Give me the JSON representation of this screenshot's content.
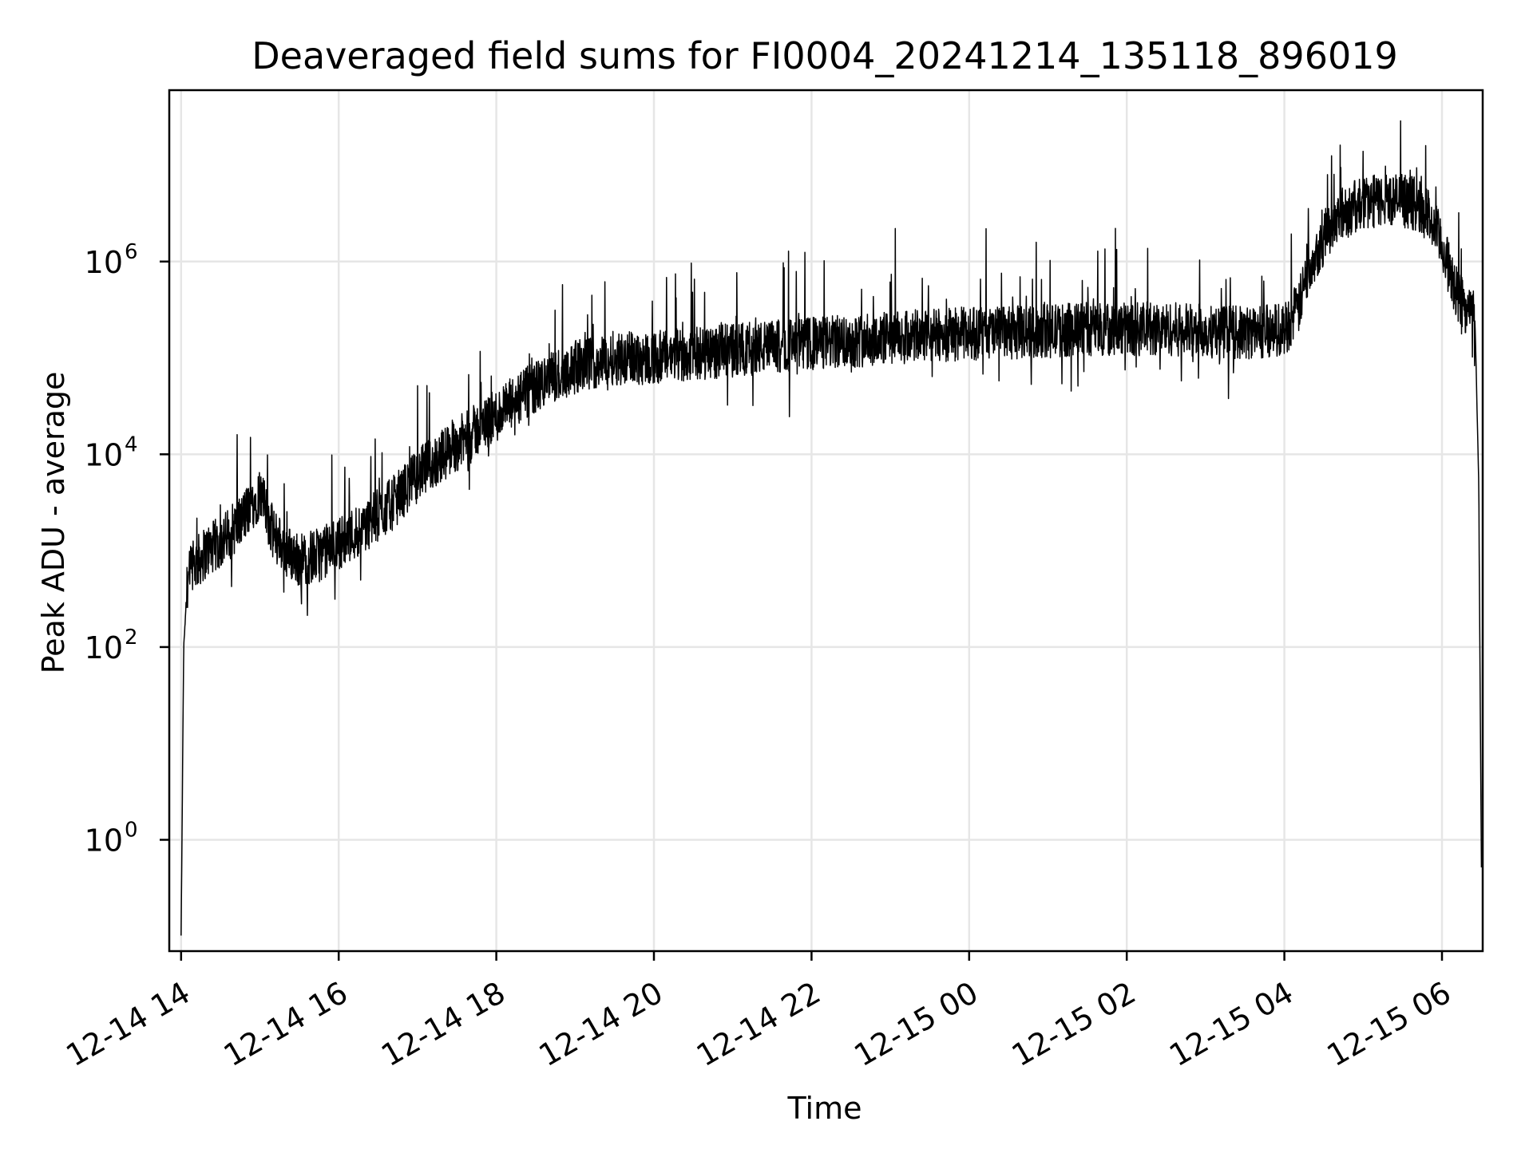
{
  "chart_data": {
    "type": "line",
    "title": "Deaveraged field sums for FI0004_20241214_135118_896019",
    "xlabel": "Time",
    "ylabel": "Peak ADU - average",
    "yscale": "log",
    "grid": true,
    "legend": "none",
    "line_color": "#000000",
    "grid_color": "#e6e6e6",
    "xlim": [
      "2024-12-14 13:51",
      "2024-12-15 06:31"
    ],
    "ylim": [
      0.07,
      60000000
    ],
    "x_ticks": [
      {
        "time": "2024-12-14 14:00",
        "label": "12-14 14"
      },
      {
        "time": "2024-12-14 16:00",
        "label": "12-14 16"
      },
      {
        "time": "2024-12-14 18:00",
        "label": "12-14 18"
      },
      {
        "time": "2024-12-14 20:00",
        "label": "12-14 20"
      },
      {
        "time": "2024-12-14 22:00",
        "label": "12-14 22"
      },
      {
        "time": "2024-12-15 00:00",
        "label": "12-15 00"
      },
      {
        "time": "2024-12-15 02:00",
        "label": "12-15 02"
      },
      {
        "time": "2024-12-15 04:00",
        "label": "12-15 04"
      },
      {
        "time": "2024-12-15 06:00",
        "label": "12-15 06"
      }
    ],
    "y_ticks": [
      {
        "value": 1,
        "base": "10",
        "exp": "0"
      },
      {
        "value": 100,
        "base": "10",
        "exp": "2"
      },
      {
        "value": 10000,
        "base": "10",
        "exp": "4"
      },
      {
        "value": 1000000,
        "base": "10",
        "exp": "6"
      }
    ],
    "series": [
      {
        "x": [
          "2024-12-14 14:00",
          "2024-12-14 14:02",
          "2024-12-14 14:05",
          "2024-12-14 14:10",
          "2024-12-14 14:20",
          "2024-12-14 14:30",
          "2024-12-14 14:45",
          "2024-12-14 15:00",
          "2024-12-14 15:10",
          "2024-12-14 15:20",
          "2024-12-14 15:30",
          "2024-12-14 15:45",
          "2024-12-14 16:00",
          "2024-12-14 16:20",
          "2024-12-14 16:40",
          "2024-12-14 17:00",
          "2024-12-14 17:20",
          "2024-12-14 17:40",
          "2024-12-14 18:00",
          "2024-12-14 18:20",
          "2024-12-14 18:40",
          "2024-12-14 19:00",
          "2024-12-14 19:30",
          "2024-12-14 20:00",
          "2024-12-14 20:30",
          "2024-12-14 21:00",
          "2024-12-14 21:30",
          "2024-12-14 22:00",
          "2024-12-14 22:30",
          "2024-12-14 23:00",
          "2024-12-14 23:30",
          "2024-12-15 00:00",
          "2024-12-15 00:30",
          "2024-12-15 01:00",
          "2024-12-15 01:30",
          "2024-12-15 02:00",
          "2024-12-15 02:30",
          "2024-12-15 03:00",
          "2024-12-15 03:30",
          "2024-12-15 04:00",
          "2024-12-15 04:10",
          "2024-12-15 04:20",
          "2024-12-15 04:40",
          "2024-12-15 05:00",
          "2024-12-15 05:20",
          "2024-12-15 05:40",
          "2024-12-15 05:50",
          "2024-12-15 06:00",
          "2024-12-15 06:10",
          "2024-12-15 06:20",
          "2024-12-15 06:25",
          "2024-12-15 06:28",
          "2024-12-15 06:30"
        ],
        "y": [
          0.1,
          100,
          500,
          700,
          1000,
          1200,
          2000,
          4000,
          1500,
          1000,
          800,
          900,
          1200,
          1800,
          3000,
          6000,
          10000,
          16000,
          25000,
          40000,
          60000,
          80000,
          100000,
          100000,
          110000,
          120000,
          130000,
          140000,
          150000,
          160000,
          170000,
          180000,
          180000,
          190000,
          200000,
          200000,
          200000,
          190000,
          180000,
          200000,
          300000,
          1000000,
          3000000,
          4000000,
          4500000,
          4000000,
          3000000,
          1500000,
          500000,
          300000,
          300000,
          5000,
          0.5
        ]
      }
    ]
  }
}
